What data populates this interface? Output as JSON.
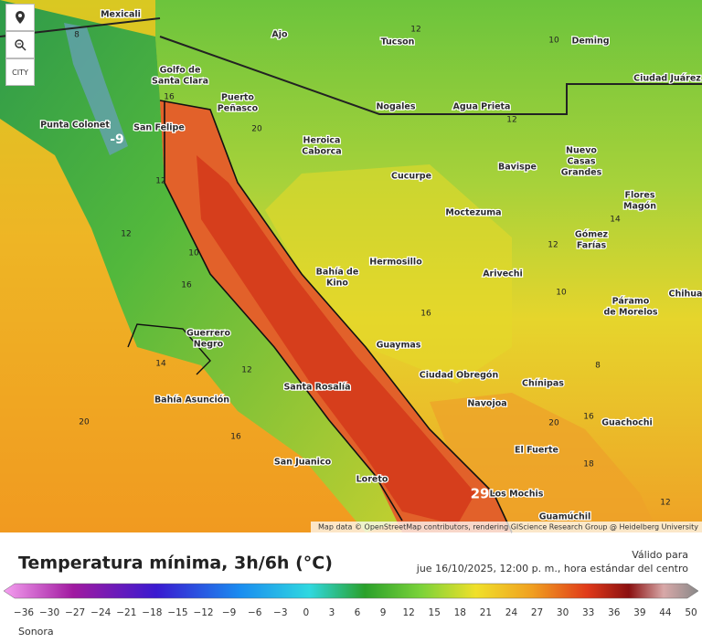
{
  "map": {
    "controls": {
      "city": "CITY"
    },
    "cities": [
      [
        "Mexicali"
      ],
      [
        "Ajo"
      ],
      [
        "Tucson"
      ],
      [
        "Deming"
      ],
      [
        "Ciudad Juárez"
      ],
      [
        "Golfo de",
        "Santa Clara"
      ],
      [
        "Puerto",
        "Peñasco"
      ],
      [
        "Punta Colonet"
      ],
      [
        "San Felipe"
      ],
      [
        "Nogales"
      ],
      [
        "Agua Prieta"
      ],
      [
        "Heroica",
        "Caborca"
      ],
      [
        "Cucurpe"
      ],
      [
        "Bavispe"
      ],
      [
        "Nuevo",
        "Casas",
        "Grandes"
      ],
      [
        "Flores",
        "Magón"
      ],
      [
        "Moctezuma"
      ],
      [
        "Gómez",
        "Farías"
      ],
      [
        "Hermosillo"
      ],
      [
        "Bahía de",
        "Kino"
      ],
      [
        "Arivechi"
      ],
      [
        "Chihua"
      ],
      [
        "Páramo",
        "de Morelos"
      ],
      [
        "Guerrero",
        "Negro"
      ],
      [
        "Guaymas"
      ],
      [
        "Ciudad Obregón"
      ],
      [
        "Chínipas"
      ],
      [
        "Bahía Asunción"
      ],
      [
        "Santa Rosalía"
      ],
      [
        "Navojoa"
      ],
      [
        "Guachochi"
      ],
      [
        "El Fuerte"
      ],
      [
        "San Juanico"
      ],
      [
        "Loreto"
      ],
      [
        "Los Mochis"
      ],
      [
        "Guamúchil"
      ]
    ],
    "contour_labels": [
      8,
      12,
      10,
      16,
      20,
      -9,
      12,
      12,
      12,
      10,
      14,
      12,
      16,
      10,
      16,
      14,
      12,
      8,
      20,
      16,
      20,
      16,
      18,
      29,
      12
    ],
    "attribution": "Map data © OpenStreetMap contributors, rendering GIScience Research Group @ Heidelberg University"
  },
  "legend": {
    "title": "Temperatura mínima, 3h/6h (°C)",
    "valid_label": "Válido para",
    "valid_time": "jue 16/10/2025, 12:00 p. m., hora estándar del centro",
    "scale": [
      "−36",
      "−30",
      "−27",
      "−24",
      "−21",
      "−18",
      "−15",
      "−12",
      "−9",
      "−6",
      "−3",
      "0",
      "3",
      "6",
      "9",
      "12",
      "15",
      "18",
      "21",
      "24",
      "27",
      "30",
      "33",
      "36",
      "39",
      "44",
      "50"
    ],
    "region": "Sonora"
  }
}
